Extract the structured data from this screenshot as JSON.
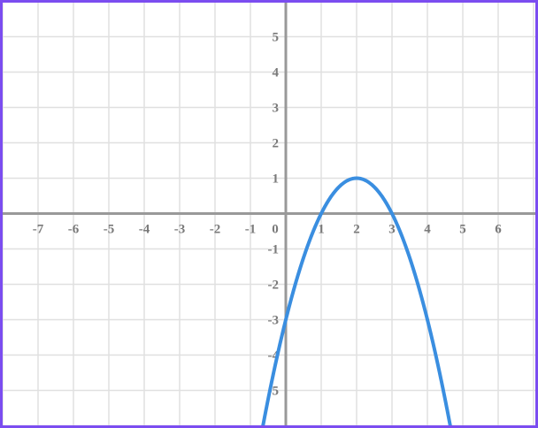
{
  "chart_data": {
    "type": "line",
    "xlim": [
      -8,
      7
    ],
    "ylim": [
      -6,
      6
    ],
    "grid": true,
    "x_tick_labels": [
      "-7",
      "-6",
      "-5",
      "-4",
      "-3",
      "-2",
      "-1",
      "0",
      "1",
      "2",
      "3",
      "4",
      "5",
      "6"
    ],
    "y_tick_labels": [
      "5",
      "4",
      "3",
      "2",
      "1",
      "-1",
      "-2",
      "-3",
      "-4",
      "-5"
    ],
    "series": [
      {
        "x": [
          0,
          1,
          2,
          3,
          4
        ],
        "y": [
          -3,
          0,
          1,
          0,
          -3
        ],
        "color": "#3a8ee0"
      }
    ],
    "colors": {
      "grid": "#e0e0e0",
      "axis": "#999999",
      "border": "#7b4df0",
      "label": "#7a7a7a"
    }
  }
}
